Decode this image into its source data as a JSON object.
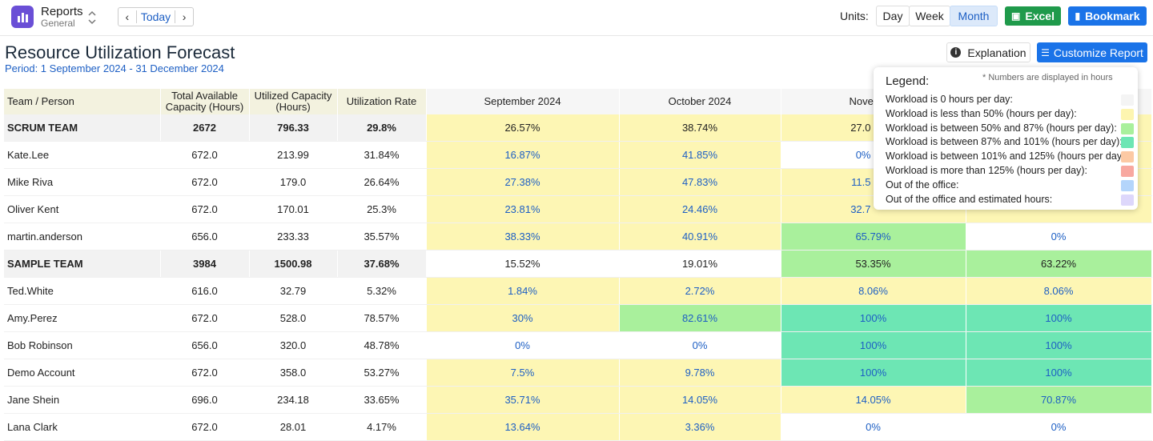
{
  "header": {
    "app_title": "Reports",
    "app_subtitle": "General",
    "today": "Today",
    "units_label": "Units:",
    "units": [
      "Day",
      "Week",
      "Month"
    ],
    "excel": "Excel",
    "bookmark": "Bookmark"
  },
  "report": {
    "title": "Resource Utilization Forecast",
    "period": "Period: 1 September 2024 - 31 December 2024",
    "explanation": "Explanation",
    "customize": "Customize Report"
  },
  "table": {
    "columns": [
      "Team / Person",
      "Total Available Capacity (Hours)",
      "Utilized Capacity (Hours)",
      "Utilization Rate",
      "September 2024",
      "October 2024",
      "November",
      null
    ],
    "rows": [
      [
        "SCRUM TEAM",
        "2672",
        "796.33",
        "29.8%",
        "26.57%",
        "38.74%",
        "27.0",
        null
      ],
      [
        "Kate.Lee",
        "672.0",
        "213.99",
        "31.84%",
        "16.87%",
        "41.85%",
        "0%",
        null
      ],
      [
        "Mike Riva",
        "672.0",
        "179.0",
        "26.64%",
        "27.38%",
        "47.83%",
        "11.5",
        null
      ],
      [
        "Oliver Kent",
        "672.0",
        "170.01",
        "25.3%",
        "23.81%",
        "24.46%",
        "32.7",
        null
      ],
      [
        "martin.anderson",
        "656.0",
        "233.33",
        "35.57%",
        "38.33%",
        "40.91%",
        "65.79%",
        "0%"
      ],
      [
        "SAMPLE TEAM",
        "3984",
        "1500.98",
        "37.68%",
        "15.52%",
        "19.01%",
        "53.35%",
        "63.22%"
      ],
      [
        "Ted.White",
        "616.0",
        "32.79",
        "5.32%",
        "1.84%",
        "2.72%",
        "8.06%",
        "8.06%"
      ],
      [
        "Amy.Perez",
        "672.0",
        "528.0",
        "78.57%",
        "30%",
        "82.61%",
        "100%",
        "100%"
      ],
      [
        "Bob Robinson",
        "656.0",
        "320.0",
        "48.78%",
        "0%",
        "0%",
        "100%",
        "100%"
      ],
      [
        "Demo Account",
        "672.0",
        "358.0",
        "53.27%",
        "7.5%",
        "9.78%",
        "100%",
        "100%"
      ],
      [
        "Jane Shein",
        "696.0",
        "234.18",
        "33.65%",
        "35.71%",
        "14.05%",
        "14.05%",
        "70.87%"
      ],
      [
        "Lana Clark",
        "672.0",
        "28.01",
        "4.17%",
        "13.64%",
        "3.36%",
        "0%",
        "0%"
      ]
    ]
  },
  "legend": {
    "title": "Legend:",
    "note": "* Numbers are displayed in hours",
    "items": [
      "Workload is 0 hours per day:",
      "Workload is less than 50% (hours per day):",
      "Workload is between 50% and 87% (hours per day):",
      "Workload is between 87% and 101% (hours per day):",
      "Workload is between 101% and 125% (hours per day):",
      "Workload is more than 125% (hours per day):",
      "Out of the office:",
      "Out of the office and estimated hours:"
    ]
  }
}
